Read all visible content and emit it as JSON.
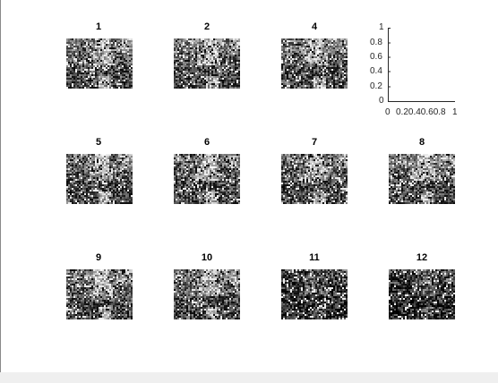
{
  "figure": {
    "subplots": [
      {
        "title": "1",
        "shade": "normal"
      },
      {
        "title": "2",
        "shade": "normal"
      },
      {
        "title": "4",
        "shade": "normal"
      },
      {
        "title": "",
        "shade": "empty"
      },
      {
        "title": "5",
        "shade": "normal"
      },
      {
        "title": "6",
        "shade": "normal"
      },
      {
        "title": "7",
        "shade": "normal"
      },
      {
        "title": "8",
        "shade": "normal"
      },
      {
        "title": "9",
        "shade": "normal"
      },
      {
        "title": "10",
        "shade": "normal"
      },
      {
        "title": "11",
        "shade": "dark"
      },
      {
        "title": "12",
        "shade": "dark"
      }
    ],
    "empty_axes": {
      "y_ticks": [
        "0",
        "0.2",
        "0.4",
        "0.6",
        "0.8",
        "1"
      ],
      "x_ticks": [
        "0",
        "0.20.40.60.8",
        "1"
      ]
    }
  }
}
